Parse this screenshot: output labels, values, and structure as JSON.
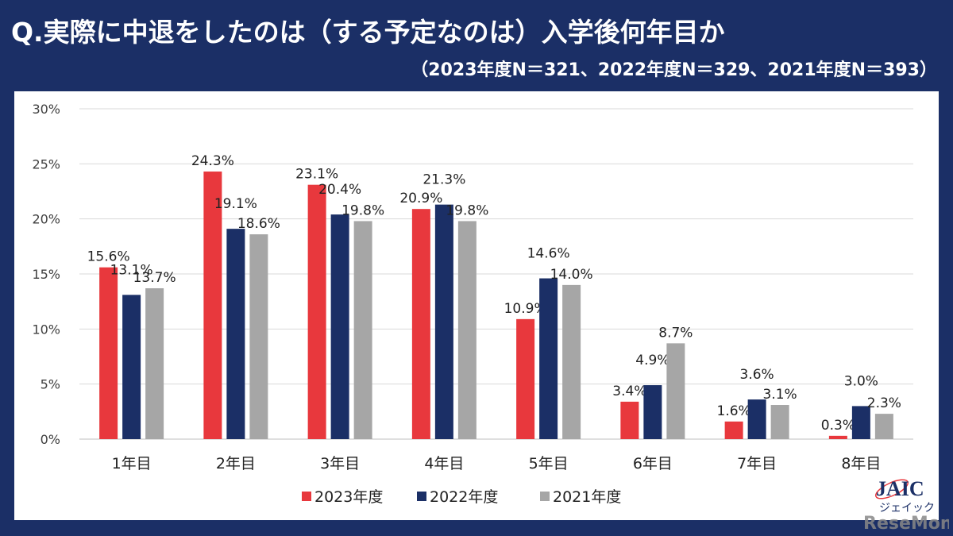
{
  "header": {
    "title": "Q.実際に中退をしたのは（する予定なのは）入学後何年目か",
    "subtitle": "（2023年度N＝321、2022年度N＝329、2021年度N＝393）"
  },
  "chart_data": {
    "type": "bar",
    "title": "Q.実際に中退をしたのは（する予定なのは）入学後何年目か",
    "subtitle": "（2023年度N＝321、2022年度N＝329、2021年度N＝393）",
    "categories": [
      "1年目",
      "2年目",
      "3年目",
      "4年目",
      "5年目",
      "6年目",
      "7年目",
      "8年目"
    ],
    "series": [
      {
        "name": "2023年度",
        "color": "#e8383d",
        "values": [
          15.6,
          24.3,
          23.1,
          20.9,
          10.9,
          3.4,
          1.6,
          0.3
        ]
      },
      {
        "name": "2022年度",
        "color": "#1b2f66",
        "values": [
          13.1,
          19.1,
          20.4,
          21.3,
          14.6,
          4.9,
          3.6,
          3.0
        ]
      },
      {
        "name": "2021年度",
        "color": "#a6a6a6",
        "values": [
          13.7,
          18.6,
          19.8,
          19.8,
          14.0,
          8.7,
          3.1,
          2.3
        ]
      }
    ],
    "ylim": [
      0,
      30
    ],
    "yticks": [
      "0%",
      "5%",
      "10%",
      "15%",
      "20%",
      "25%",
      "30%"
    ],
    "ytick_values": [
      0,
      5,
      10,
      15,
      20,
      25,
      30
    ],
    "value_suffix": "%",
    "grid": true,
    "legend_position": "bottom"
  },
  "logo": {
    "text": "JAIC",
    "kana": "ジェイック",
    "watermark": "ReseMom"
  }
}
